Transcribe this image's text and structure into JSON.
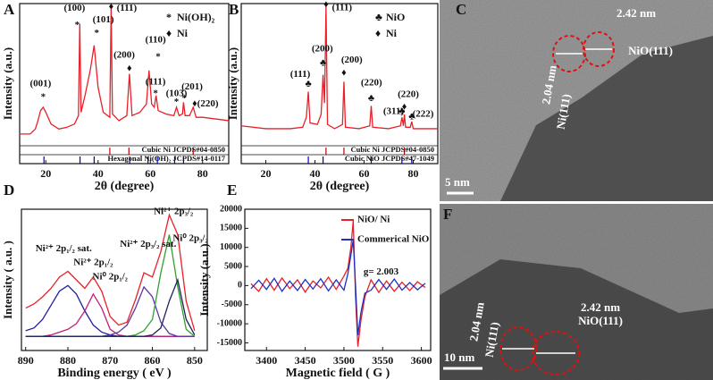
{
  "chart_data": [
    {
      "type": "line",
      "panel": "A",
      "xlabel": "2θ (degree)",
      "ylabel": "Intensity (a.u.)",
      "xlim": [
        10,
        90
      ],
      "xticks": [
        20,
        40,
        60,
        80
      ],
      "ylim": [
        15,
        100
      ],
      "x": [
        10,
        14,
        16,
        17,
        18,
        19,
        20,
        22,
        25,
        28,
        31,
        32.5,
        33,
        33.5,
        35,
        37,
        38.5,
        40,
        42,
        44.5,
        45,
        45.5,
        48,
        51,
        52,
        53,
        56,
        58.5,
        59.5,
        60.5,
        61.5,
        62.2,
        63,
        66,
        69,
        70,
        71,
        72.3,
        72.7,
        73.3,
        75,
        76.4,
        77.5,
        80,
        85,
        90
      ],
      "series": [
        {
          "color": "#e8202a",
          "values": [
            22,
            22,
            25,
            30,
            36,
            38,
            35,
            28,
            25,
            26,
            28,
            33,
            88,
            35,
            45,
            60,
            75,
            50,
            35,
            32,
            98,
            34,
            30,
            33,
            58,
            33,
            35,
            40,
            60,
            40,
            38,
            45,
            36,
            34,
            33,
            38,
            33,
            34,
            41,
            33,
            33,
            38,
            32,
            32,
            31,
            30
          ]
        }
      ],
      "legend": [
        {
          "marker": "*",
          "label": "Ni(OH)₂"
        },
        {
          "marker": "♦",
          "label": "Ni"
        }
      ],
      "annotations": [
        {
          "text": "(001)",
          "x": 18,
          "y": 52
        },
        {
          "text": "*",
          "x": 19,
          "y": 44
        },
        {
          "text": "(100)",
          "x": 31,
          "y": 97
        },
        {
          "text": "*",
          "x": 32,
          "y": 87
        },
        {
          "text": "(101)",
          "x": 42,
          "y": 90
        },
        {
          "text": "*",
          "x": 39.5,
          "y": 82
        },
        {
          "text": "(111)",
          "x": 51,
          "y": 97
        },
        {
          "text": "♦",
          "x": 45,
          "y": 98
        },
        {
          "text": "(200)",
          "x": 50,
          "y": 69
        },
        {
          "text": "♦",
          "x": 52,
          "y": 61
        },
        {
          "text": "(110)",
          "x": 62,
          "y": 78
        },
        {
          "text": "*",
          "x": 63,
          "y": 68
        },
        {
          "text": "(111)",
          "x": 62,
          "y": 53
        },
        {
          "text": "*",
          "x": 62,
          "y": 46
        },
        {
          "text": "(103)",
          "x": 70,
          "y": 46
        },
        {
          "text": "*",
          "x": 70,
          "y": 41
        },
        {
          "text": "(201)",
          "x": 76,
          "y": 50
        },
        {
          "text": "*",
          "x": 73,
          "y": 43
        },
        {
          "text": "(220)",
          "x": 82,
          "y": 40
        },
        {
          "text": "♦",
          "x": 77,
          "y": 40
        }
      ],
      "refs": [
        {
          "name": "Cubic Ni JCPDS#04-0850",
          "color": "#c00000",
          "positions": [
            44.5,
            51.8,
            76.4
          ]
        },
        {
          "name": "Hexagonal Ni(OH)₂ JCPDS#14-0117",
          "color": "#0000c0",
          "positions": [
            19.3,
            33.1,
            38.5,
            52.1,
            59.1,
            62.7,
            69.3,
            72.7
          ]
        }
      ]
    },
    {
      "type": "line",
      "panel": "B",
      "xlabel": "2θ (degree)",
      "ylabel": "Intensity (a.u.)",
      "xlim": [
        10,
        90
      ],
      "xticks": [
        20,
        40,
        60,
        80
      ],
      "ylim": [
        0,
        100
      ],
      "x": [
        10,
        20,
        30,
        35,
        36.5,
        37.3,
        38,
        41,
        42.5,
        43.3,
        43.9,
        44.5,
        45.1,
        48,
        51.2,
        51.8,
        52.4,
        58,
        62.3,
        62.9,
        63.5,
        70,
        74.8,
        75.4,
        76,
        76.4,
        76.9,
        78.8,
        79.4,
        80,
        90
      ],
      "series": [
        {
          "color": "#e8202a",
          "values": [
            14,
            12,
            12,
            13,
            20,
            38,
            16,
            15,
            22,
            50,
            30,
            98,
            15,
            12,
            15,
            45,
            13,
            12,
            14,
            28,
            13,
            12,
            14,
            20,
            14,
            22,
            13,
            13,
            17,
            12,
            12
          ]
        }
      ],
      "legend": [
        {
          "marker": "♣",
          "label": "NiO"
        },
        {
          "marker": "♦",
          "label": "Ni"
        }
      ],
      "annotations": [
        {
          "text": "(111)",
          "x": 51,
          "y": 97
        },
        {
          "text": "♦",
          "x": 44.5,
          "y": 99
        },
        {
          "text": "(200)",
          "x": 43,
          "y": 68
        },
        {
          "text": "♣",
          "x": 43.3,
          "y": 58
        },
        {
          "text": "(200)",
          "x": 55,
          "y": 60
        },
        {
          "text": "♦",
          "x": 51.8,
          "y": 51
        },
        {
          "text": "(111)",
          "x": 34,
          "y": 50
        },
        {
          "text": "♣",
          "x": 37.3,
          "y": 43
        },
        {
          "text": "(220)",
          "x": 63,
          "y": 44
        },
        {
          "text": "♣",
          "x": 62.9,
          "y": 33
        },
        {
          "text": "(220)",
          "x": 78,
          "y": 36
        },
        {
          "text": "♦",
          "x": 76.4,
          "y": 27
        },
        {
          "text": "(311)",
          "x": 72,
          "y": 24
        },
        {
          "text": "♣",
          "x": 75.4,
          "y": 24
        },
        {
          "text": "(222)",
          "x": 84,
          "y": 22
        },
        {
          "text": "♣",
          "x": 79.4,
          "y": 20
        }
      ],
      "refs": [
        {
          "name": "Cubic Ni JCPDS#04-0850",
          "color": "#c00000",
          "positions": [
            44.5,
            51.8,
            76.4
          ]
        },
        {
          "name": "Cubic NiO JCPDS#47-1049",
          "color": "#0000c0",
          "positions": [
            37.3,
            43.3,
            62.9,
            75.4,
            79.4
          ]
        }
      ]
    },
    {
      "type": "line",
      "panel": "D",
      "xlabel": "Binding energy ( eV )",
      "ylabel": "Intensity ( a.u. )",
      "xlim": [
        891,
        847
      ],
      "xticks": [
        890,
        880,
        870,
        860,
        850
      ],
      "ylim": [
        0,
        100
      ],
      "x": [
        890,
        888,
        886,
        884,
        882,
        880,
        878,
        876,
        874,
        872,
        870,
        868,
        866,
        864,
        862,
        860,
        858,
        856,
        854,
        852,
        850
      ],
      "series": [
        {
          "color": "#e8202a",
          "values": [
            30,
            33,
            38,
            44,
            52,
            56,
            50,
            44,
            52,
            42,
            24,
            18,
            20,
            36,
            55,
            52,
            70,
            96,
            82,
            35,
            14
          ]
        },
        {
          "color": "#2020a0",
          "values": [
            14,
            16,
            22,
            32,
            42,
            46,
            40,
            28,
            18,
            13,
            11,
            10,
            10,
            10,
            10,
            10,
            10,
            10,
            10,
            10,
            10
          ]
        },
        {
          "color": "#c0207a",
          "values": [
            10,
            10,
            10,
            11,
            13,
            15,
            19,
            28,
            40,
            30,
            15,
            11,
            10,
            10,
            10,
            10,
            10,
            10,
            10,
            10,
            10
          ]
        },
        {
          "color": "#5a3aa0",
          "values": [
            10,
            10,
            10,
            10,
            10,
            10,
            10,
            10,
            10,
            10,
            11,
            13,
            18,
            30,
            45,
            38,
            20,
            12,
            10,
            10,
            10
          ]
        },
        {
          "color": "#30a030",
          "values": [
            10,
            10,
            10,
            10,
            10,
            10,
            10,
            10,
            10,
            10,
            10,
            10,
            10,
            11,
            14,
            22,
            55,
            82,
            45,
            15,
            10
          ]
        },
        {
          "color": "#202060",
          "values": [
            10,
            10,
            10,
            10,
            10,
            10,
            10,
            10,
            10,
            10,
            10,
            10,
            10,
            10,
            10,
            11,
            16,
            35,
            50,
            22,
            11
          ]
        }
      ],
      "annotations": [
        {
          "text": "Ni²⁺ 2p₁/₂ sat.",
          "x": 881,
          "y": 72
        },
        {
          "text": "Ni²⁺ 2p₁/₂",
          "x": 874,
          "y": 62
        },
        {
          "text": "Ni⁰ 2p₁/₂",
          "x": 870,
          "y": 52
        },
        {
          "text": "Ni²⁺ 2p₃/₂ sat.",
          "x": 861,
          "y": 75
        },
        {
          "text": "Ni²⁺ 2p₃/₂",
          "x": 855,
          "y": 98
        },
        {
          "text": "Ni⁰ 2p₃/₂",
          "x": 851,
          "y": 79
        }
      ]
    },
    {
      "type": "line",
      "panel": "E",
      "xlabel": "Magnetic field ( G )",
      "ylabel": "Intensity (a.u.)",
      "xlim": [
        3372,
        3612
      ],
      "xticks": [
        3400,
        3450,
        3500,
        3550,
        3600
      ],
      "ylim": [
        -17000,
        20000
      ],
      "yticks": [
        -15000,
        -10000,
        -5000,
        0,
        5000,
        10000,
        15000,
        20000
      ],
      "x": [
        3380,
        3390,
        3400,
        3410,
        3420,
        3430,
        3440,
        3450,
        3460,
        3470,
        3480,
        3490,
        3500,
        3505,
        3509,
        3512,
        3515,
        3518,
        3522,
        3527,
        3535,
        3545,
        3555,
        3565,
        3575,
        3585,
        3595,
        3605
      ],
      "series": [
        {
          "name": "NiO/ Ni",
          "color": "#e8202a",
          "values": [
            500,
            -1500,
            1800,
            -1200,
            2000,
            -800,
            1500,
            -1700,
            1200,
            -600,
            2200,
            -1000,
            2500,
            4500,
            10000,
            17000,
            -3000,
            -16000,
            -9000,
            -3000,
            1500,
            -1800,
            1200,
            -1500,
            900,
            -1300,
            1000,
            -500
          ]
        },
        {
          "name": "Commerical NiO",
          "color": "#2030c0",
          "values": [
            -800,
            1400,
            -1000,
            1900,
            -1500,
            1200,
            -1300,
            1600,
            -900,
            1800,
            -1400,
            1500,
            -1200,
            3000,
            8000,
            12000,
            0,
            -13000,
            -7000,
            -2000,
            -1200,
            1600,
            -1000,
            1700,
            -1200,
            800,
            -1100,
            600
          ]
        }
      ],
      "annotations": [
        {
          "text": "g= 2.003",
          "x": 3548,
          "y": 3500
        }
      ]
    }
  ],
  "images": [
    {
      "panel": "C",
      "spacing_1": "2.42 nm",
      "plane_1": "NiO(111)",
      "spacing_2": "2.04 nm",
      "plane_2": "Ni(111)",
      "scale_bar": "5 nm"
    },
    {
      "panel": "F",
      "spacing_1": "2.04 nm",
      "plane_1": "Ni(111)",
      "spacing_2": "2.42 nm",
      "plane_2": "NiO(111)",
      "scale_bar": "10 nm"
    }
  ]
}
